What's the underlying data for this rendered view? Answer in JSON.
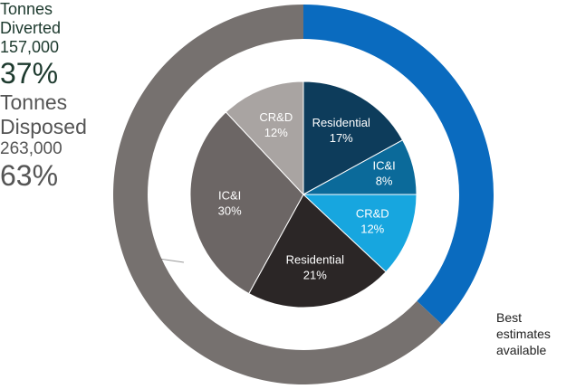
{
  "chart_data": [
    {
      "type": "donut",
      "categories": [
        "Tonnes Diverted",
        "Tonnes Disposed"
      ],
      "values": [
        37,
        63
      ],
      "value_labels": [
        "37%",
        "63%"
      ],
      "tonnes": [
        157000,
        263000
      ],
      "tonnes_labels": [
        "157,000",
        "263,000"
      ],
      "colors": [
        "#0a6bbf",
        "#76716f"
      ]
    },
    {
      "type": "pie",
      "categories": [
        "Residential",
        "IC&I",
        "CR&D",
        "Residential",
        "IC&I",
        "CR&D"
      ],
      "values": [
        17,
        8,
        12,
        21,
        30,
        12
      ],
      "value_labels": [
        "17%",
        "8%",
        "12%",
        "21%",
        "30%",
        "12%"
      ],
      "colors": [
        "#0d3c5b",
        "#0b6a9a",
        "#17a6df",
        "#2b2626",
        "#6c6665",
        "#a9a4a2"
      ]
    }
  ],
  "annotation": "Best estimates available"
}
